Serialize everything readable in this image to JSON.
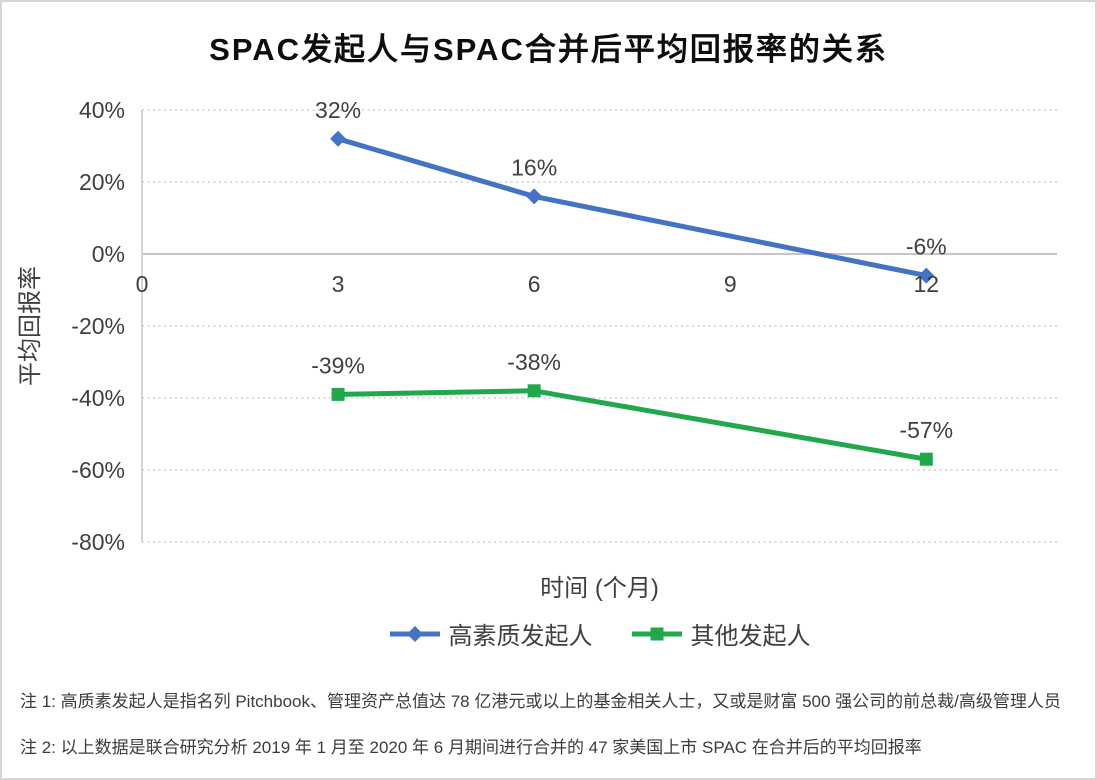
{
  "title": "SPAC发起人与SPAC合并后平均回报率的关系",
  "chart_data": {
    "type": "line",
    "title": "SPAC发起人与SPAC合并后平均回报率的关系",
    "xlabel": "时间 (个月)",
    "ylabel": "平均回报率",
    "x": [
      3,
      6,
      12
    ],
    "series": [
      {
        "name": "高素质发起人",
        "values": [
          32,
          16,
          -6
        ],
        "data_labels": [
          "32%",
          "16%",
          "-6%"
        ],
        "color": "#4472C4",
        "marker": "diamond"
      },
      {
        "name": "其他发起人",
        "values": [
          -39,
          -38,
          -57
        ],
        "data_labels": [
          "-39%",
          "-38%",
          "-57%"
        ],
        "color": "#21A84C",
        "marker": "square"
      }
    ],
    "x_ticks": [
      0,
      3,
      6,
      9,
      12
    ],
    "y_ticks": {
      "labels": [
        "40%",
        "20%",
        "0%",
        "-20%",
        "-40%",
        "-60%",
        "-80%"
      ],
      "values": [
        40,
        20,
        0,
        -20,
        -40,
        -60,
        -80
      ]
    },
    "xlim": [
      0,
      14
    ],
    "ylim": [
      -80,
      40
    ],
    "grid": "horizontal dotted",
    "legend_position": "bottom"
  },
  "notes": {
    "note1": "注 1: 高质素发起人是指名列 Pitchbook、管理资产总值达 78 亿港元或以上的基金相关人士，又或是财富 500 强公司的前总裁/高级管理人员",
    "note2": "注 2: 以上数据是联合研究分析 2019 年 1 月至 2020 年 6 月期间进行合并的 47 家美国上市 SPAC 在合并后的平均回报率"
  },
  "colors": {
    "series_blue": "#4472C4",
    "series_green": "#21A84C",
    "gridline": "#DBDBDB",
    "zero_line": "#C6C6C6",
    "axis_line": "#D4D4D4",
    "axis_text": "#404040",
    "title_text": "#0D0D0D",
    "note_text": "#3D3D3D"
  }
}
